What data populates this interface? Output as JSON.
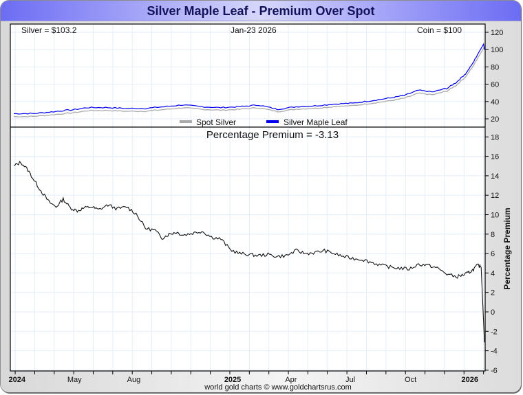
{
  "title": "Silver Maple Leaf - Premium Over Spot",
  "info": {
    "silver": "Silver = $103.2",
    "date": "Jan-23  2026",
    "coin": "Coin = $100"
  },
  "premium_title": "Percentage Premium = -3.13",
  "footer": "world gold charts © www.goldchartsrus.com",
  "colors": {
    "spot": "#aaaaaa",
    "coin": "#0000ee",
    "premium": "#111111",
    "grid": "#e4eef8",
    "title_text": "#12125a"
  },
  "chart_data": [
    {
      "type": "line",
      "title": "Silver Maple Leaf vs Spot Silver (USD)",
      "ylabel": "",
      "ylim": [
        10,
        130
      ],
      "yticks": [
        "120",
        "100",
        "80",
        "60",
        "40",
        "20"
      ],
      "ytick_values": [
        120,
        100,
        80,
        60,
        40,
        20
      ],
      "legend": [
        "Spot Silver",
        "Silver Maple Leaf"
      ],
      "legend_position": "bottom-center",
      "x": [
        0,
        0.04,
        0.08,
        0.12,
        0.16,
        0.2,
        0.24,
        0.28,
        0.32,
        0.36,
        0.4,
        0.44,
        0.48,
        0.52,
        0.56,
        0.6,
        0.64,
        0.68,
        0.72,
        0.76,
        0.8,
        0.83,
        0.86,
        0.89,
        0.92,
        0.94,
        0.96,
        0.975,
        0.985,
        1.0
      ],
      "series": [
        {
          "name": "Silver Maple Leaf",
          "values": [
            26,
            26,
            28,
            30,
            33,
            33,
            32,
            32,
            34,
            36,
            34,
            33,
            34,
            36,
            31,
            34,
            35,
            37,
            38,
            41,
            44,
            47,
            53,
            51,
            55,
            62,
            72,
            84,
            94,
            100
          ]
        },
        {
          "name": "Spot Silver",
          "values": [
            22.6,
            22.8,
            24.6,
            26.7,
            29.6,
            29.7,
            28.8,
            28.9,
            30.8,
            32.8,
            31.0,
            30.0,
            31.0,
            32.9,
            28.4,
            31.2,
            32.2,
            34.1,
            35.2,
            38.0,
            40.9,
            43.9,
            49.6,
            47.8,
            52.0,
            58.8,
            68.6,
            80.1,
            89.7,
            103.2
          ]
        }
      ]
    },
    {
      "type": "line",
      "title": "Percentage Premium = -3.13",
      "ylabel": "Percentage Premium",
      "ylim": [
        -6,
        19
      ],
      "yticks": [
        "18",
        "16",
        "14",
        "12",
        "10",
        "8",
        "6",
        "4",
        "2",
        "0",
        "-2",
        "-4",
        "-6"
      ],
      "ytick_values": [
        18,
        16,
        14,
        12,
        10,
        8,
        6,
        4,
        2,
        0,
        -2,
        -4,
        -6
      ],
      "xticks": [
        "2024",
        "May",
        "Aug",
        "2025",
        "Apr",
        "Jul",
        "Oct",
        "2026"
      ],
      "xtick_bold": [
        true,
        false,
        false,
        true,
        false,
        false,
        false,
        true
      ],
      "xtick_positions": [
        0.007,
        0.129,
        0.255,
        0.465,
        0.589,
        0.715,
        0.843,
        0.969
      ],
      "grid": true,
      "x": [
        0,
        0.015,
        0.03,
        0.045,
        0.06,
        0.075,
        0.09,
        0.105,
        0.12,
        0.135,
        0.15,
        0.165,
        0.18,
        0.2,
        0.22,
        0.24,
        0.26,
        0.28,
        0.3,
        0.315,
        0.33,
        0.345,
        0.36,
        0.38,
        0.4,
        0.42,
        0.44,
        0.46,
        0.48,
        0.5,
        0.52,
        0.54,
        0.56,
        0.58,
        0.6,
        0.62,
        0.64,
        0.66,
        0.68,
        0.7,
        0.72,
        0.74,
        0.76,
        0.78,
        0.8,
        0.82,
        0.84,
        0.86,
        0.88,
        0.9,
        0.92,
        0.94,
        0.955,
        0.965,
        0.975,
        0.985,
        0.993,
        1.0
      ],
      "values": [
        15.0,
        15.4,
        14.6,
        13.4,
        12.3,
        11.3,
        10.8,
        11.6,
        10.7,
        10.4,
        10.7,
        10.8,
        10.5,
        11.0,
        10.6,
        10.8,
        10.1,
        8.6,
        8.4,
        7.6,
        8.0,
        8.2,
        7.9,
        8.1,
        8.3,
        7.7,
        7.5,
        6.4,
        6.0,
        5.9,
        5.8,
        5.9,
        5.7,
        5.8,
        6.3,
        6.0,
        6.1,
        6.3,
        6.0,
        5.7,
        5.5,
        5.4,
        5.1,
        4.8,
        4.6,
        4.5,
        4.4,
        4.9,
        4.8,
        4.5,
        3.9,
        3.6,
        3.8,
        4.0,
        4.3,
        4.8,
        4.6,
        -3.13
      ]
    }
  ]
}
